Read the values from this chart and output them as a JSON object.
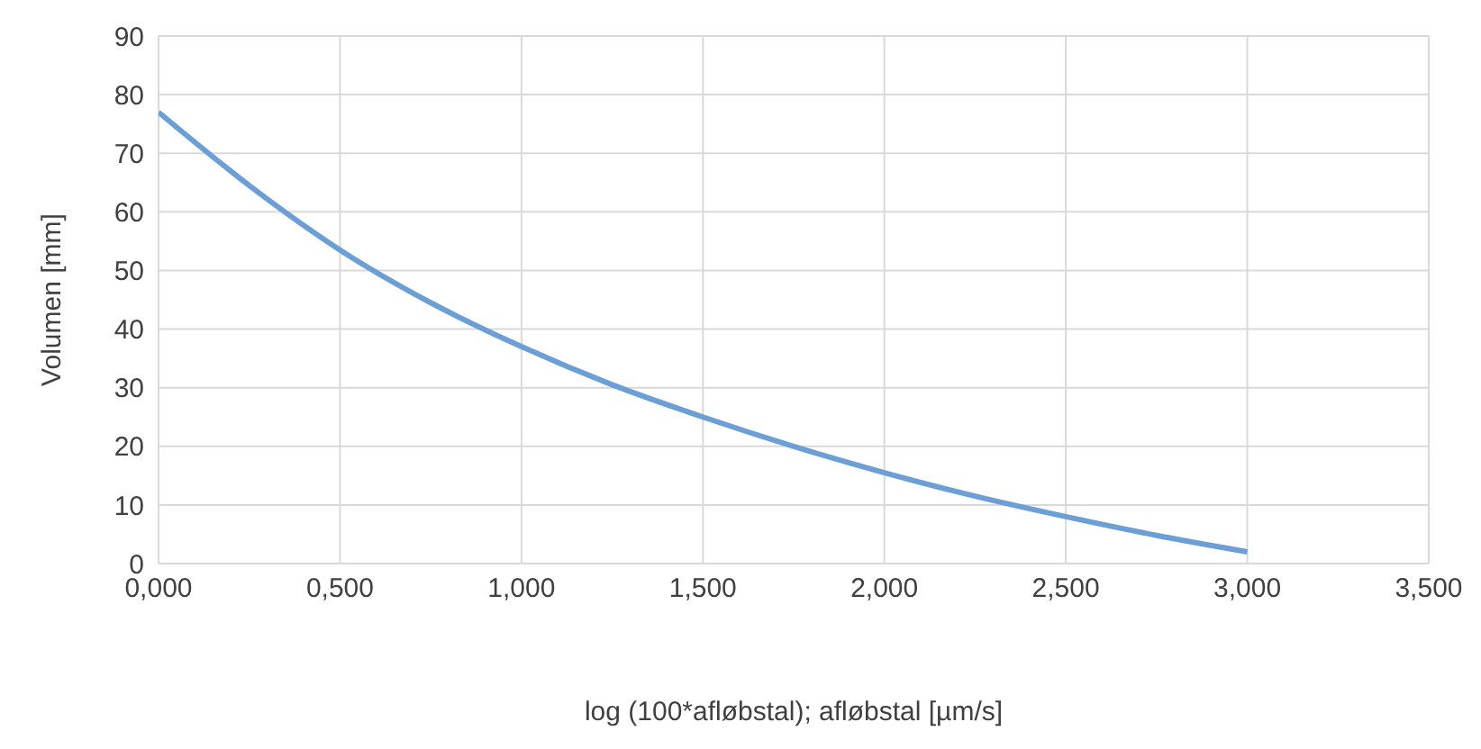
{
  "chart_data": {
    "type": "line",
    "xlabel": "log (100*afløbstal); afløbstal [µm/s]",
    "ylabel": "Volumen [mm]",
    "x": [
      0,
      0.25,
      0.5,
      0.75,
      1,
      1.25,
      1.5,
      1.75,
      2,
      2.25,
      2.5,
      2.75,
      3
    ],
    "series": [
      {
        "color": "#6b9fd6",
        "values": [
          77,
          64.5,
          53.5,
          44.5,
          37,
          30.5,
          25,
          20,
          15.5,
          11.5,
          8,
          4.8,
          2
        ]
      }
    ],
    "xlim": [
      0,
      3.5
    ],
    "xticks": [
      {
        "value": 0,
        "label": "0,000"
      },
      {
        "value": 0.5,
        "label": "0,500"
      },
      {
        "value": 1,
        "label": "1,000"
      },
      {
        "value": 1.5,
        "label": "1,500"
      },
      {
        "value": 2,
        "label": "2,000"
      },
      {
        "value": 2.5,
        "label": "2,500"
      },
      {
        "value": 3,
        "label": "3,000"
      },
      {
        "value": 3.5,
        "label": "3,500"
      }
    ],
    "ylim": [
      0,
      90
    ],
    "yticks": [
      0,
      10,
      20,
      30,
      40,
      50,
      60,
      70,
      80,
      90
    ],
    "grid": true,
    "marker": "none",
    "line_style": "solid",
    "legend": false
  }
}
